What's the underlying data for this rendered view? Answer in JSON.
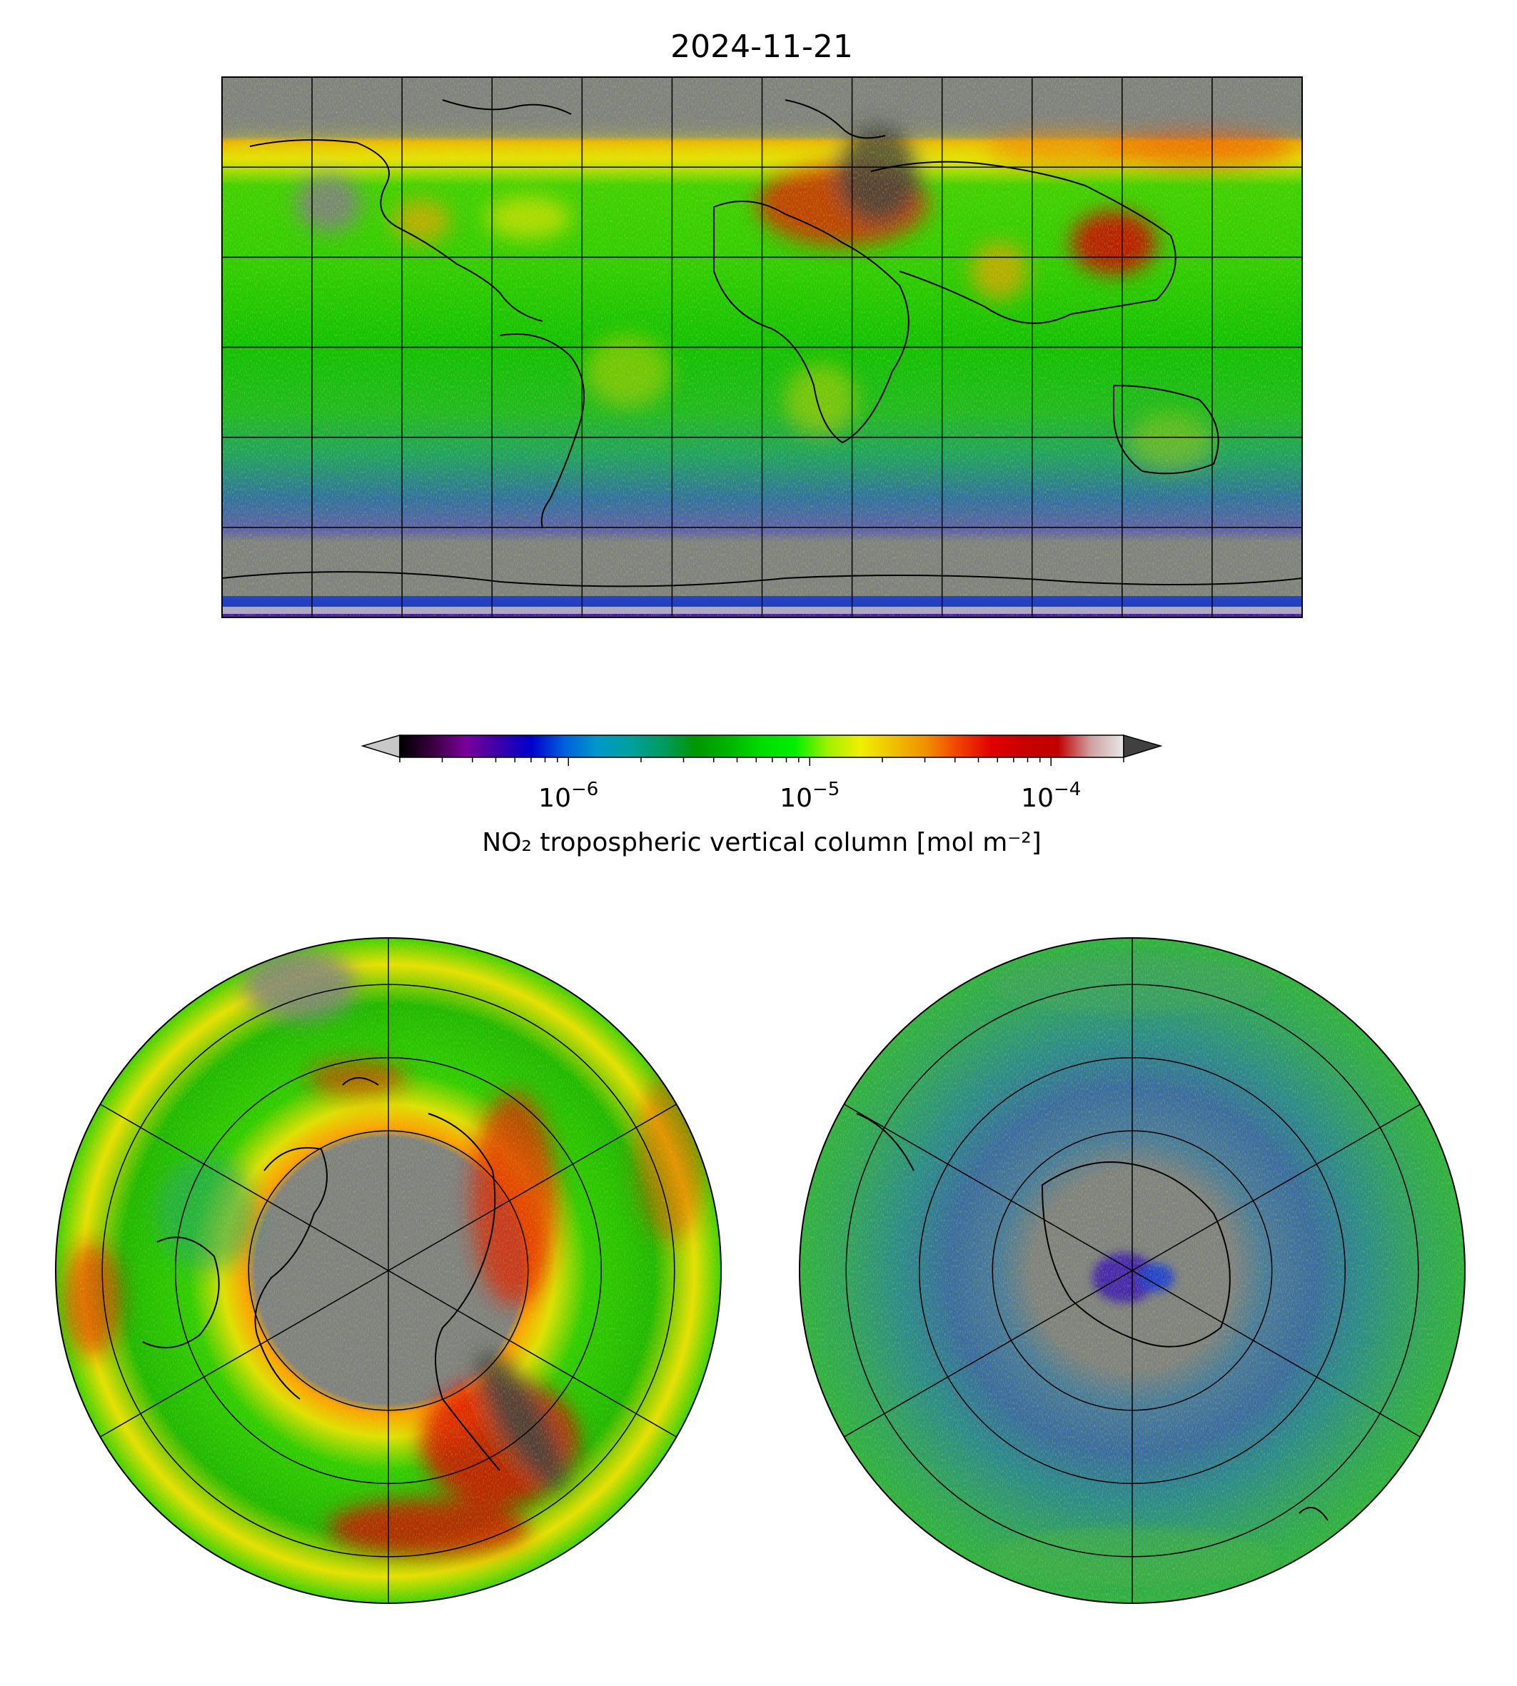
{
  "figure": {
    "title": "2024-11-21"
  },
  "colorbar": {
    "label": "NO₂ tropospheric vertical column [mol m⁻²]",
    "scale": "log",
    "range": [
      2e-07,
      0.0002
    ],
    "major_ticks": [
      {
        "value": 1e-06,
        "base": "10",
        "exp": "−6"
      },
      {
        "value": 1e-05,
        "base": "10",
        "exp": "−5"
      },
      {
        "value": 0.0001,
        "base": "10",
        "exp": "−4"
      }
    ],
    "extend": "both",
    "under_color": "#c8c8c8",
    "over_color": "#404040",
    "stops": [
      "#000000",
      "#3a0040",
      "#7a009a",
      "#3c00a8",
      "#0000cc",
      "#0060dd",
      "#0098c8",
      "#00a0a0",
      "#009a60",
      "#009600",
      "#00b400",
      "#00dc00",
      "#00f000",
      "#a0f000",
      "#f0f000",
      "#f0c000",
      "#f09000",
      "#f04000",
      "#e00000",
      "#c80000",
      "#c00000",
      "#d0a0a0",
      "#e8e8e8"
    ]
  },
  "map_colors": {
    "no_data": "#808080",
    "coast": "#000000",
    "grid": "#000000"
  },
  "panels": [
    {
      "name": "global-map",
      "projection": "plate-carree",
      "meridian_step_deg": 30,
      "parallel_step_deg": 30
    },
    {
      "name": "north-polar-map",
      "projection": "north-polar-stereographic"
    },
    {
      "name": "south-polar-map",
      "projection": "south-polar-stereographic"
    }
  ]
}
